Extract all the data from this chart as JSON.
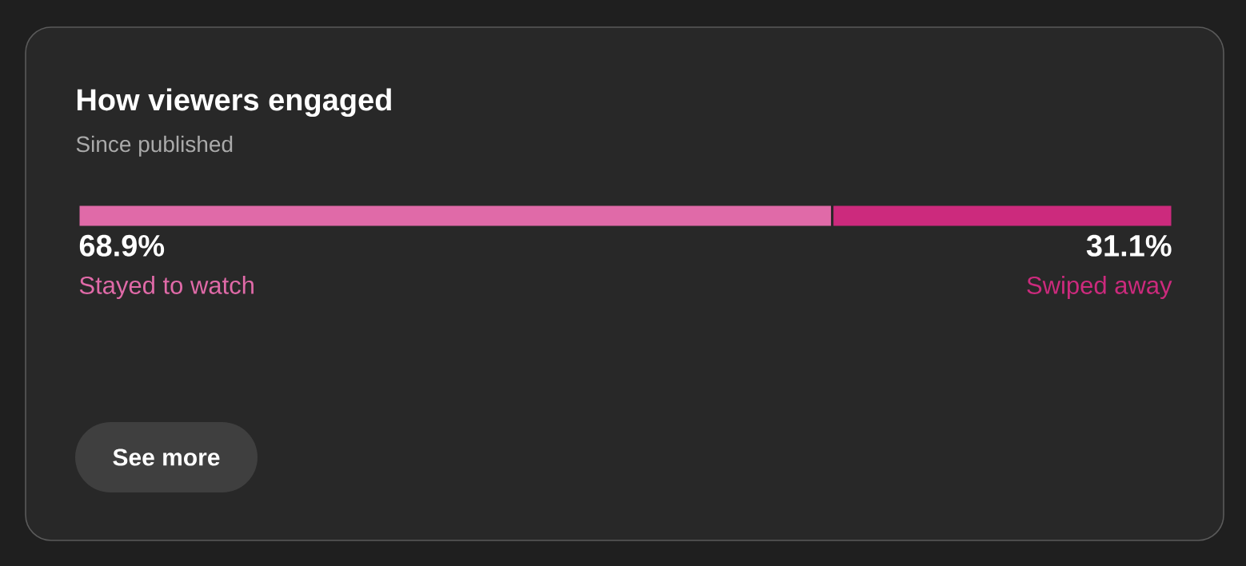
{
  "chart_data": {
    "type": "bar",
    "orientation": "horizontal",
    "stacked": true,
    "title": "How viewers engaged",
    "subtitle": "Since published",
    "categories": [
      null
    ],
    "series": [
      {
        "name": "Stayed to watch",
        "color": "#e06aa8",
        "values": [
          68.9
        ],
        "value_labels": [
          "68.9%"
        ]
      },
      {
        "name": "Swiped away",
        "color": "#cc2a7d",
        "values": [
          31.1
        ],
        "value_labels": [
          "31.1%"
        ]
      }
    ],
    "annotations": [
      "See more"
    ]
  }
}
